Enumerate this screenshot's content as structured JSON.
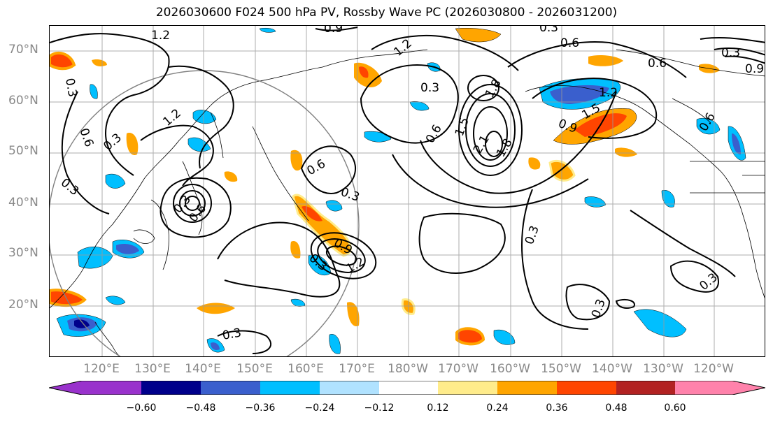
{
  "title": "2026030600 F024 500 hPa PV, Rossby Wave PC (2026030800 - 2026031200)",
  "lat_labels": [
    "70°N",
    "60°N",
    "50°N",
    "40°N",
    "30°N",
    "20°N"
  ],
  "lon_labels": [
    "120°E",
    "130°E",
    "140°E",
    "150°E",
    "160°E",
    "170°E",
    "180°W",
    "170°W",
    "160°W",
    "150°W",
    "140°W",
    "130°W",
    "120°W"
  ],
  "contour_labels": [
    "1.2",
    "0.9",
    "0.3",
    "0.6",
    "0.6",
    "0.9",
    "1.2",
    "0.3",
    "0.6",
    "0.3",
    "1.2",
    "1.8",
    "1.5",
    "2.1",
    "1.8",
    "0.6",
    "1.2",
    "0.3",
    "0.6",
    "0.3",
    "1.5",
    "0.9",
    "0.3",
    "0.6",
    "0.3",
    "0.3",
    "0.3",
    "0.3",
    "0.9",
    "1.2",
    "0.3",
    "0.6",
    "0.3",
    "0.3"
  ],
  "colorbar": {
    "ticks": [
      "−0.60",
      "−0.48",
      "−0.36",
      "−0.24",
      "−0.12",
      "0.12",
      "0.24",
      "0.36",
      "0.48",
      "0.60"
    ],
    "colors": [
      "#9932CC",
      "#00008B",
      "#3A5FCD",
      "#00BFFF",
      "#B0E2FF",
      "#FFFFFF",
      "#FFEC8B",
      "#FFA500",
      "#FF4500",
      "#B22222",
      "#FF82AB"
    ]
  }
}
